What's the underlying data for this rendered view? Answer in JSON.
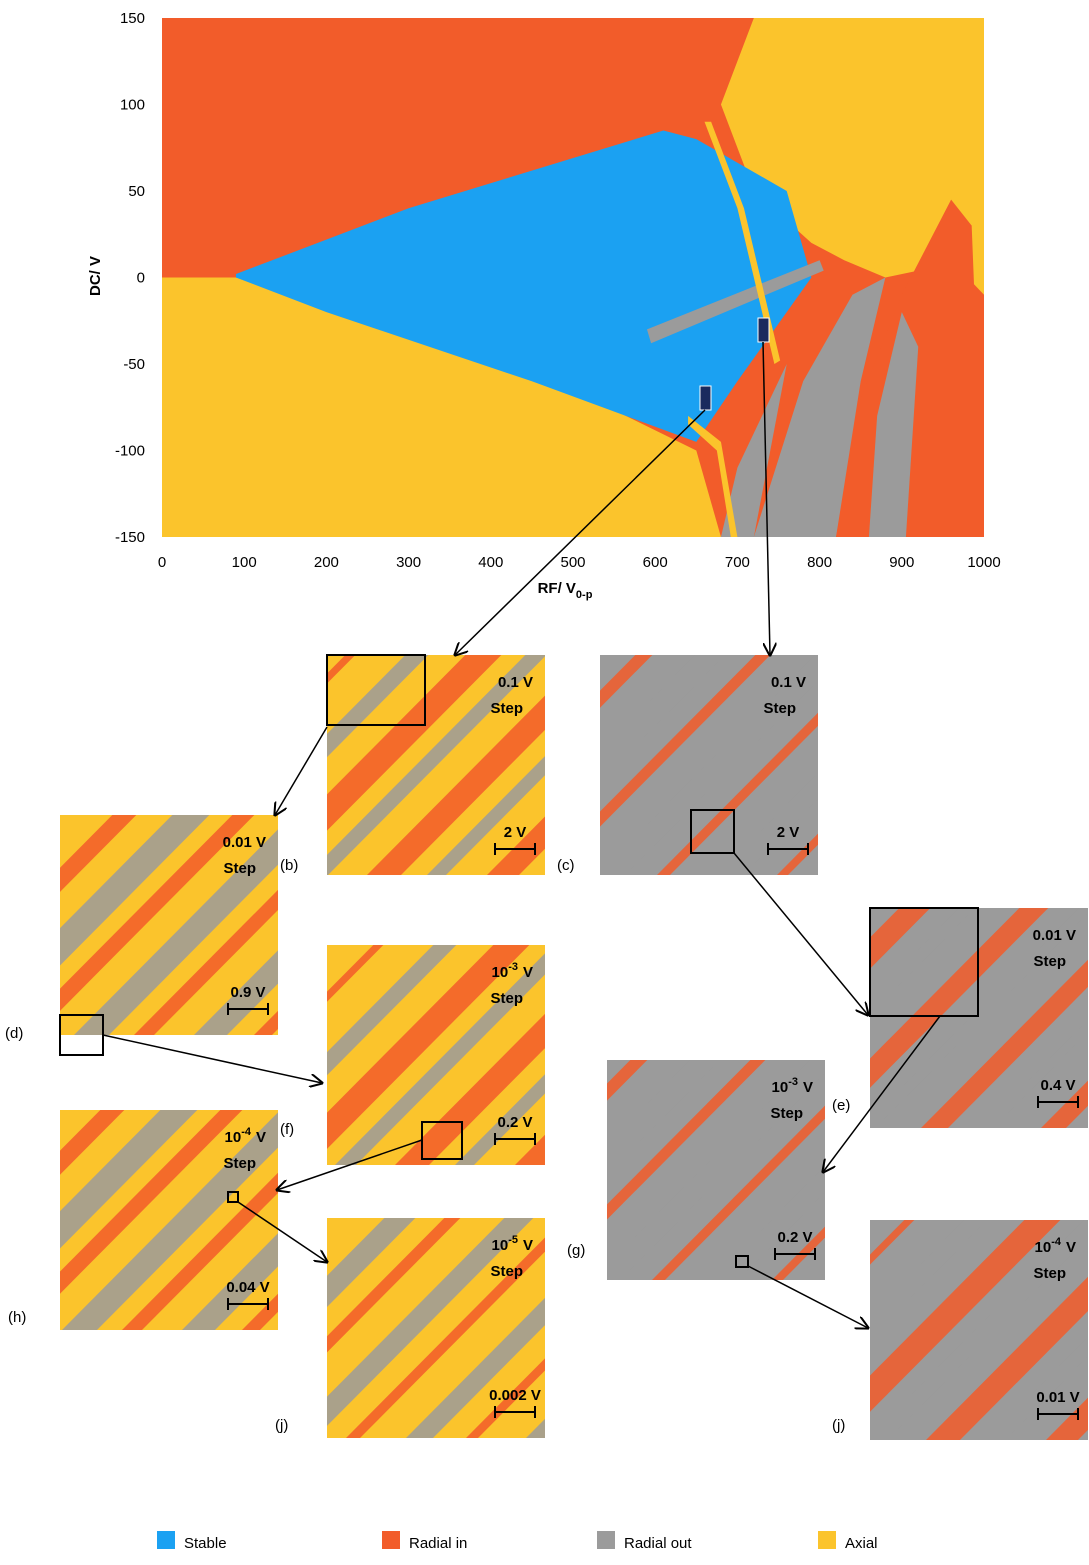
{
  "chart_data": {
    "type": "region-map",
    "xlabel": "RF/ V",
    "xlabel_sub": "0-p",
    "ylabel": "DC/ V",
    "xlim": [
      0,
      1000
    ],
    "ylim": [
      -150,
      150
    ],
    "xticks": [
      0,
      100,
      200,
      300,
      400,
      500,
      600,
      700,
      800,
      900,
      1000
    ],
    "yticks": [
      -150,
      -100,
      -50,
      0,
      50,
      100,
      150
    ],
    "legend": [
      {
        "name": "Stable",
        "color": "#1ba1f2"
      },
      {
        "name": "Radial in",
        "color": "#f25c2a"
      },
      {
        "name": "Radial out",
        "color": "#9b9b9b"
      },
      {
        "name": "Axial",
        "color": "#fbc42c"
      }
    ]
  },
  "panels": [
    {
      "label": "(b)",
      "step": "0.1 V",
      "step_word": "Step",
      "scale": "2 V"
    },
    {
      "label": "(c)",
      "step": "0.1 V",
      "step_word": "Step",
      "scale": "2 V"
    },
    {
      "label": "(d)",
      "step": "0.01 V",
      "step_word": "Step",
      "scale": "0.9 V"
    },
    {
      "label": "(e)",
      "step": "0.01 V",
      "step_word": "Step",
      "scale": "0.4 V"
    },
    {
      "label": "(f)",
      "step_base": "10",
      "step_exp": "-3",
      "step_unit": "V",
      "step_word": "Step",
      "scale": "0.2 V"
    },
    {
      "label": "(g)",
      "step_base": "10",
      "step_exp": "-3",
      "step_unit": "V",
      "step_word": "Step",
      "scale": "0.2 V"
    },
    {
      "label": "(h)",
      "step_base": "10",
      "step_exp": "-4",
      "step_unit": "V",
      "step_word": "Step",
      "scale": "0.04 V"
    },
    {
      "label": "(j)",
      "step_base": "10",
      "step_exp": "-5",
      "step_unit": "V",
      "step_word": "Step",
      "scale": "0.002 V"
    },
    {
      "label": "(j)",
      "step_base": "10",
      "step_exp": "-4",
      "step_unit": "V",
      "step_word": "Step",
      "scale": "0.01 V"
    }
  ]
}
